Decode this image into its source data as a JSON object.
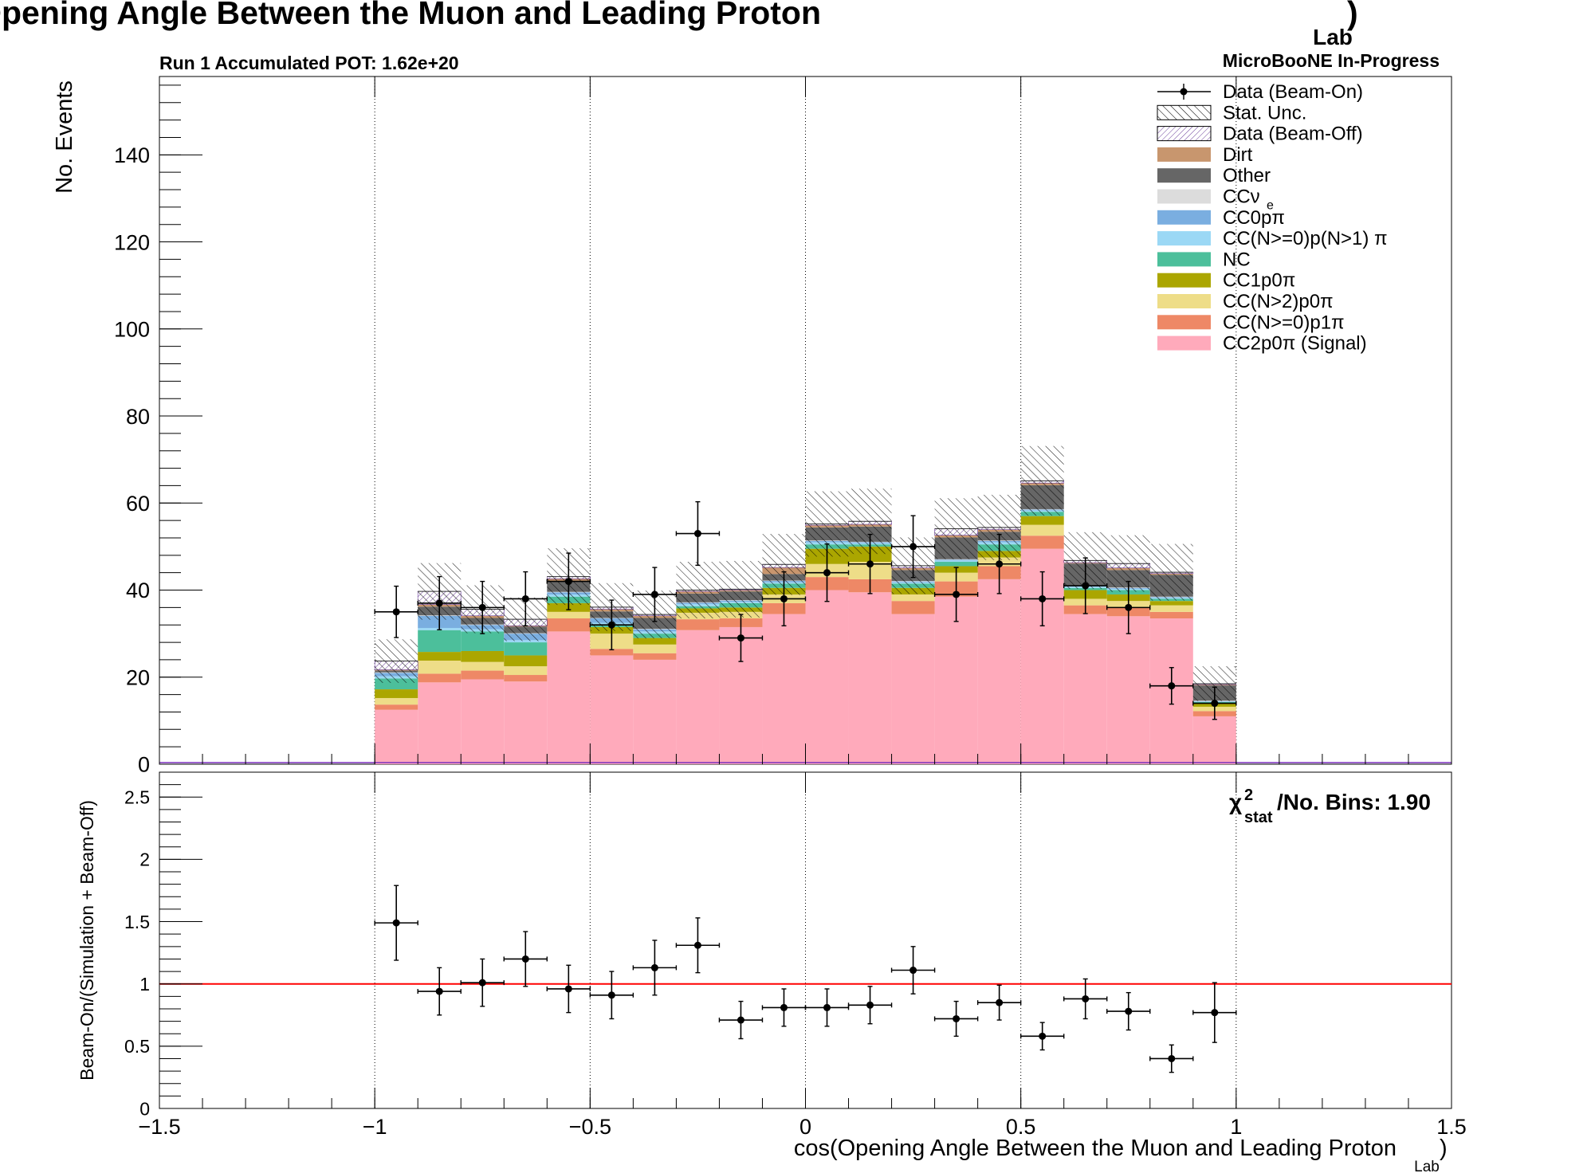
{
  "chart_data": [
    {
      "type": "bar",
      "panel": "main",
      "stacked": true,
      "title": "cos(Opening Angle Between the Muon and Leading Proton",
      "title_subscript": "Lab",
      "title_close": ")",
      "run_label": "Run 1 Accumulated POT: 1.62e+20",
      "experiment_label": "MicroBooNE In-Progress",
      "ylabel": "No. Events",
      "xlim": [
        -1.5,
        1.5
      ],
      "ylim": [
        0,
        158
      ],
      "x_ticks": [
        -1.5,
        -1,
        -0.5,
        0,
        0.5,
        1,
        1.5
      ],
      "x_tick_labels": [
        "−1.5",
        "−1",
        "−0.5",
        "0",
        "0.5",
        "1",
        "1.5"
      ],
      "y_ticks": [
        0,
        20,
        40,
        60,
        80,
        100,
        120,
        140
      ],
      "y_tick_labels": [
        "0",
        "20",
        "40",
        "60",
        "80",
        "100",
        "120",
        "140"
      ],
      "grid": "vertical dotted at -1, -0.5, 0, 0.5, 1",
      "legend_position": "top-right",
      "bin_edges": [
        -1.0,
        -0.9,
        -0.8,
        -0.7,
        -0.6,
        -0.5,
        -0.4,
        -0.3,
        -0.2,
        -0.1,
        0.0,
        0.1,
        0.2,
        0.3,
        0.4,
        0.5,
        0.6,
        0.7,
        0.8,
        0.9,
        1.0
      ],
      "legend": [
        {
          "label": "Data (Beam-On)",
          "sub": "",
          "style": "marker"
        },
        {
          "label": "Stat. Unc.",
          "sub": "",
          "style": "hatch"
        },
        {
          "label": "Data (Beam-Off)",
          "sub": "",
          "style": "hatch-purple"
        },
        {
          "label": "Dirt",
          "sub": "",
          "color": "#c8966e"
        },
        {
          "label": "Other",
          "sub": "",
          "color": "#666666"
        },
        {
          "label": "CCν",
          "sub": "e",
          "color": "#dcdcdc"
        },
        {
          "label": "CC0pπ",
          "sub": "",
          "color": "#7aaee0"
        },
        {
          "label": "CC(N>=0)p(N>1) π",
          "sub": "",
          "color": "#9bd8f5"
        },
        {
          "label": "NC",
          "sub": "",
          "color": "#4cbf9b"
        },
        {
          "label": "CC1p0π",
          "sub": "",
          "color": "#aba600"
        },
        {
          "label": "CC(N>2)p0π",
          "sub": "",
          "color": "#eedd88"
        },
        {
          "label": "CC(N>=0)p1π",
          "sub": "",
          "color": "#ee8866"
        },
        {
          "label": "CC2p0π (Signal)",
          "sub": "",
          "color": "#ffaabb"
        }
      ],
      "series": [
        {
          "name": "CC2p0π (Signal)",
          "color": "#ffaabb",
          "values": [
            12.5,
            18.8,
            19.5,
            19.0,
            30.5,
            25.0,
            24.0,
            30.8,
            31.5,
            34.5,
            40.0,
            39.5,
            34.5,
            38.5,
            42.5,
            49.5,
            34.5,
            34.0,
            33.5,
            11.0
          ]
        },
        {
          "name": "CC(N>=0)p1π",
          "color": "#ee8866",
          "values": [
            1.2,
            2.0,
            2.0,
            1.5,
            3.0,
            1.5,
            1.5,
            2.5,
            2.0,
            2.5,
            3.0,
            3.0,
            3.0,
            3.5,
            3.0,
            3.0,
            2.0,
            2.0,
            1.5,
            1.2
          ]
        },
        {
          "name": "CC(N>2)p0π",
          "color": "#eedd88",
          "values": [
            1.5,
            3.0,
            2.0,
            2.0,
            1.5,
            3.5,
            2.0,
            1.5,
            1.5,
            2.0,
            3.0,
            4.0,
            1.5,
            2.0,
            2.0,
            2.5,
            1.5,
            1.5,
            1.5,
            1.0
          ]
        },
        {
          "name": "CC1p0π",
          "color": "#aba600",
          "values": [
            2.0,
            2.0,
            2.5,
            2.5,
            2.0,
            1.5,
            1.5,
            1.0,
            1.0,
            1.5,
            3.5,
            3.5,
            1.5,
            1.5,
            1.5,
            2.0,
            2.0,
            1.5,
            1.0,
            0.8
          ]
        },
        {
          "name": "NC",
          "color": "#4cbf9b",
          "values": [
            2.5,
            5.0,
            4.5,
            3.0,
            1.5,
            0.5,
            1.0,
            0.5,
            1.0,
            1.0,
            1.0,
            0.5,
            1.0,
            1.0,
            1.5,
            1.0,
            0.5,
            1.0,
            0.5,
            0.3
          ]
        },
        {
          "name": "CC(N>=0)p(N>1) π",
          "color": "#9bd8f5",
          "values": [
            0.5,
            0.5,
            0.5,
            0.5,
            0.5,
            0.5,
            0.5,
            0.5,
            0.3,
            0.3,
            0.5,
            0.3,
            0.3,
            0.3,
            0.5,
            0.3,
            0.3,
            0.3,
            0.2,
            0.1
          ]
        },
        {
          "name": "CC0pπ",
          "color": "#7aaee0",
          "values": [
            0.8,
            2.8,
            1.0,
            1.5,
            0.5,
            1.0,
            0.5,
            0.3,
            0.3,
            0.3,
            0.3,
            0.2,
            0.2,
            0.2,
            0.3,
            0.2,
            0.2,
            0.2,
            0.2,
            0.1
          ]
        },
        {
          "name": "CCν",
          "sub": "e",
          "color": "#dcdcdc",
          "values": [
            0.1,
            0.1,
            0.1,
            0.1,
            0.1,
            0.1,
            0.1,
            0.1,
            0.1,
            0.1,
            0.1,
            0.1,
            0.1,
            0.1,
            0.1,
            0.1,
            0.1,
            0.1,
            0.1,
            0.1
          ]
        },
        {
          "name": "Other",
          "color": "#666666",
          "values": [
            0.4,
            2.0,
            1.5,
            1.5,
            2.5,
            1.5,
            2.5,
            2.0,
            2.0,
            1.5,
            3.0,
            3.5,
            2.5,
            5.0,
            2.0,
            5.5,
            5.0,
            4.0,
            5.0,
            3.5
          ]
        },
        {
          "name": "Dirt",
          "color": "#c8966e",
          "values": [
            0.2,
            0.5,
            0.5,
            0.2,
            0.5,
            0.5,
            0.5,
            0.5,
            0.3,
            1.5,
            0.5,
            0.5,
            0.5,
            0.5,
            0.5,
            0.5,
            0.2,
            0.5,
            0.3,
            0.2
          ]
        }
      ],
      "beam_off": {
        "name": "Data (Beam-Off)",
        "values": [
          2.0,
          3.0,
          1.5,
          1.5,
          0.5,
          0.5,
          0.3,
          0.3,
          0.2,
          0.7,
          0.3,
          0.7,
          0.5,
          1.5,
          0.5,
          0.5,
          0.5,
          1.0,
          0.3,
          0.2
        ]
      },
      "stat_unc": {
        "name": "Stat. Unc.",
        "values": [
          5.0,
          6.5,
          5.5,
          5.0,
          6.5,
          5.5,
          5.5,
          6.5,
          6.5,
          7.0,
          7.5,
          7.5,
          6.5,
          7.0,
          7.5,
          8.0,
          6.5,
          6.5,
          6.5,
          4.0
        ]
      },
      "data": {
        "name": "Data (Beam-On)",
        "x": [
          -0.95,
          -0.85,
          -0.75,
          -0.65,
          -0.55,
          -0.45,
          -0.35,
          -0.25,
          -0.15,
          -0.05,
          0.05,
          0.15,
          0.25,
          0.35,
          0.45,
          0.55,
          0.65,
          0.75,
          0.85,
          0.95
        ],
        "y": [
          35,
          37,
          36,
          38,
          42,
          32,
          39,
          53,
          29,
          38,
          44,
          46,
          50,
          39,
          46,
          38,
          41,
          36,
          18,
          14
        ],
        "yerr": [
          5.9,
          6.1,
          6.0,
          6.2,
          6.5,
          5.7,
          6.2,
          7.3,
          5.4,
          6.2,
          6.6,
          6.8,
          7.1,
          6.2,
          6.8,
          6.2,
          6.4,
          6.0,
          4.2,
          3.7
        ],
        "xerr": 0.05
      }
    },
    {
      "type": "scatter",
      "panel": "ratio",
      "ylabel": "Beam-On/(Simulation + Beam-Off)",
      "xlabel": "cos(Opening Angle Between the Muon and Leading Proton",
      "xlabel_subscript": "Lab",
      "xlabel_close": ")",
      "xlim": [
        -1.5,
        1.5
      ],
      "ylim": [
        0,
        2.7
      ],
      "y_ticks": [
        0,
        0.5,
        1,
        1.5,
        2,
        2.5
      ],
      "y_tick_labels": [
        "0",
        "0.5",
        "1",
        "1.5",
        "2",
        "2.5"
      ],
      "reference_line": {
        "y": 1,
        "color": "#ff0000"
      },
      "chi2_label": {
        "prefix": "χ",
        "sup": "2",
        "sub": "stat",
        "suffix": "/No. Bins: 1.90"
      },
      "x": [
        -0.95,
        -0.85,
        -0.75,
        -0.65,
        -0.55,
        -0.45,
        -0.35,
        -0.25,
        -0.15,
        -0.05,
        0.05,
        0.15,
        0.25,
        0.35,
        0.45,
        0.55,
        0.65,
        0.75,
        0.85,
        0.95
      ],
      "y": [
        1.49,
        0.94,
        1.01,
        1.2,
        0.96,
        0.91,
        1.13,
        1.31,
        0.71,
        0.81,
        0.81,
        0.83,
        1.11,
        0.72,
        0.85,
        0.58,
        0.88,
        0.78,
        0.4,
        0.77
      ],
      "yerr": [
        0.3,
        0.19,
        0.19,
        0.22,
        0.19,
        0.19,
        0.22,
        0.22,
        0.15,
        0.15,
        0.15,
        0.15,
        0.19,
        0.14,
        0.14,
        0.11,
        0.16,
        0.15,
        0.11,
        0.24
      ],
      "xerr": 0.05
    }
  ]
}
